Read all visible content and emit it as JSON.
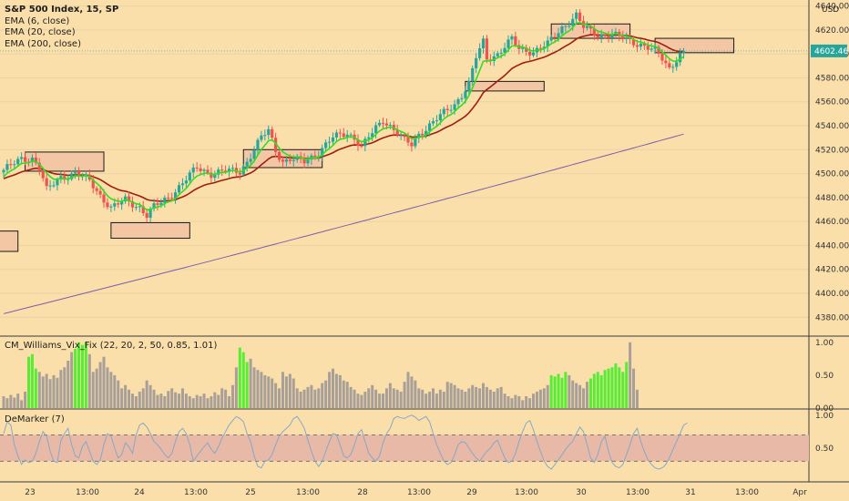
{
  "header": {
    "title": "S&P 500 Index, 15, SP",
    "currency": "USD",
    "indicators": [
      "EMA (6, close)",
      "EMA (20, close)",
      "EMA (200, close)"
    ]
  },
  "price_tag": "4602.46",
  "vix_label": "CM_Williams_Vix_Fix (22, 20, 2, 50, 0.85, 1.01)",
  "demarker_label": "DeMarker (7)",
  "colors": {
    "background": "#fbdfab",
    "bull": "#26a69a",
    "bear": "#ef5350",
    "ema6": "#33dd22",
    "ema20": "#a01e0c",
    "ema200": "#7b5ea7",
    "zone_fill": "#f4c7a4",
    "vix_high": "#55ee33",
    "vix_normal": "#a8a098",
    "demarker_line": "#86a8c8",
    "demarker_band": "#e8b9a6"
  },
  "chart_data": [
    {
      "type": "candlestick",
      "title": "S&P 500 Index, 15, SP",
      "y_unit": "USD",
      "ylim": [
        4365,
        4645
      ],
      "y_ticks": [
        4380,
        4400,
        4420,
        4440,
        4460,
        4480,
        4500,
        4520,
        4540,
        4560,
        4580,
        4600,
        4620,
        4640
      ],
      "x_ticks": [
        "23",
        "13:00",
        "24",
        "13:00",
        "25",
        "13:00",
        "28",
        "13:00",
        "29",
        "13:00",
        "30",
        "13:00",
        "31",
        "13:00",
        "Apr"
      ],
      "last_price": 4602.46,
      "close_waypoints": [
        [
          0,
          4503
        ],
        [
          5,
          4512
        ],
        [
          8,
          4513
        ],
        [
          10,
          4505
        ],
        [
          12,
          4486
        ],
        [
          16,
          4497
        ],
        [
          20,
          4500
        ],
        [
          24,
          4494
        ],
        [
          27,
          4482
        ],
        [
          30,
          4471
        ],
        [
          34,
          4478
        ],
        [
          38,
          4472
        ],
        [
          40,
          4465
        ],
        [
          42,
          4472
        ],
        [
          46,
          4480
        ],
        [
          50,
          4492
        ],
        [
          54,
          4505
        ],
        [
          58,
          4500
        ],
        [
          62,
          4502
        ],
        [
          66,
          4502
        ],
        [
          68,
          4510
        ],
        [
          70,
          4520
        ],
        [
          72,
          4530
        ],
        [
          74,
          4536
        ],
        [
          76,
          4520
        ],
        [
          78,
          4510
        ],
        [
          80,
          4512
        ],
        [
          84,
          4510
        ],
        [
          88,
          4518
        ],
        [
          92,
          4530
        ],
        [
          96,
          4534
        ],
        [
          98,
          4530
        ],
        [
          100,
          4522
        ],
        [
          104,
          4538
        ],
        [
          106,
          4545
        ],
        [
          108,
          4540
        ],
        [
          110,
          4534
        ],
        [
          112,
          4527
        ],
        [
          114,
          4524
        ],
        [
          116,
          4533
        ],
        [
          118,
          4538
        ],
        [
          122,
          4548
        ],
        [
          126,
          4558
        ],
        [
          128,
          4566
        ],
        [
          130,
          4575
        ],
        [
          132,
          4597
        ],
        [
          134,
          4610
        ],
        [
          135,
          4596
        ],
        [
          138,
          4600
        ],
        [
          142,
          4612
        ],
        [
          144,
          4604
        ],
        [
          148,
          4602
        ],
        [
          152,
          4608
        ],
        [
          156,
          4622
        ],
        [
          160,
          4632
        ],
        [
          162,
          4622
        ],
        [
          166,
          4616
        ],
        [
          170,
          4616
        ],
        [
          174,
          4612
        ],
        [
          178,
          4608
        ],
        [
          182,
          4602
        ],
        [
          184,
          4596
        ],
        [
          186,
          4588
        ],
        [
          188,
          4596
        ],
        [
          190,
          4602.46
        ]
      ],
      "series": [
        {
          "name": "EMA (6, close)",
          "period": 6
        },
        {
          "name": "EMA (20, close)",
          "period": 20
        },
        {
          "name": "EMA (200, close)",
          "period": 200,
          "values_at_start_end": [
            4383,
            4533
          ]
        }
      ],
      "zones": [
        {
          "x0": -6,
          "x1": 4,
          "y0": 4435,
          "y1": 4452
        },
        {
          "x0": 6,
          "x1": 28,
          "y0": 4502,
          "y1": 4518
        },
        {
          "x0": 30,
          "x1": 52,
          "y0": 4446,
          "y1": 4459
        },
        {
          "x0": 67,
          "x1": 89,
          "y0": 4505,
          "y1": 4520
        },
        {
          "x0": 129,
          "x1": 151,
          "y0": 4569,
          "y1": 4577
        },
        {
          "x0": 153,
          "x1": 175,
          "y0": 4613,
          "y1": 4625
        },
        {
          "x0": 182,
          "x1": 204,
          "y0": 4601,
          "y1": 4613
        }
      ]
    },
    {
      "type": "bar",
      "title": "CM_Williams_Vix_Fix (22, 20, 2, 50, 0.85, 1.01)",
      "ylim": [
        0,
        1.08
      ],
      "y_ticks": [
        "0.00",
        "0.50",
        "1.00"
      ],
      "high_threshold_note": "bars colored green when in high-volatility signal",
      "values": [
        0.18,
        0.15,
        0.2,
        0.16,
        0.22,
        0.12,
        0.25,
        0.78,
        0.82,
        0.6,
        0.55,
        0.48,
        0.52,
        0.44,
        0.5,
        0.46,
        0.58,
        0.62,
        0.72,
        0.85,
        0.9,
        1.0,
        0.96,
        1.0,
        0.82,
        0.55,
        0.6,
        0.7,
        0.78,
        0.62,
        0.55,
        0.5,
        0.42,
        0.3,
        0.35,
        0.28,
        0.22,
        0.18,
        0.25,
        0.3,
        0.42,
        0.35,
        0.28,
        0.2,
        0.22,
        0.18,
        0.26,
        0.3,
        0.24,
        0.22,
        0.3,
        0.22,
        0.18,
        0.15,
        0.2,
        0.18,
        0.22,
        0.15,
        0.18,
        0.24,
        0.2,
        0.3,
        0.28,
        0.18,
        0.35,
        0.62,
        0.92,
        0.85,
        0.7,
        0.75,
        0.62,
        0.58,
        0.55,
        0.5,
        0.48,
        0.45,
        0.38,
        0.3,
        0.55,
        0.48,
        0.52,
        0.45,
        0.3,
        0.25,
        0.28,
        0.32,
        0.35,
        0.28,
        0.3,
        0.38,
        0.42,
        0.55,
        0.6,
        0.52,
        0.5,
        0.42,
        0.4,
        0.32,
        0.28,
        0.22,
        0.2,
        0.25,
        0.3,
        0.35,
        0.28,
        0.22,
        0.22,
        0.3,
        0.38,
        0.3,
        0.28,
        0.25,
        0.4,
        0.55,
        0.48,
        0.42,
        0.3,
        0.28,
        0.22,
        0.25,
        0.3,
        0.22,
        0.28,
        0.25,
        0.4,
        0.38,
        0.35,
        0.3,
        0.28,
        0.25,
        0.3,
        0.35,
        0.32,
        0.3,
        0.38,
        0.32,
        0.28,
        0.25,
        0.3,
        0.32,
        0.22,
        0.18,
        0.15,
        0.2,
        0.18,
        0.12,
        0.18,
        0.15,
        0.22,
        0.25,
        0.28,
        0.3,
        0.35,
        0.5,
        0.48,
        0.52,
        0.46,
        0.55,
        0.5,
        0.42,
        0.38,
        0.35,
        0.3,
        0.4,
        0.45,
        0.52,
        0.55,
        0.5,
        0.58,
        0.6,
        0.62,
        0.68,
        0.62,
        0.55,
        0.7,
        1.0,
        0.6,
        0.28
      ],
      "high_flags": [
        0,
        0,
        0,
        0,
        0,
        0,
        0,
        1,
        1,
        1,
        0,
        0,
        0,
        0,
        0,
        0,
        0,
        0,
        0,
        0,
        1,
        1,
        1,
        1,
        0,
        0,
        0,
        0,
        0,
        0,
        0,
        0,
        0,
        0,
        0,
        0,
        0,
        0,
        0,
        0,
        0,
        0,
        0,
        0,
        0,
        0,
        0,
        0,
        0,
        0,
        0,
        0,
        0,
        0,
        0,
        0,
        0,
        0,
        0,
        0,
        0,
        0,
        0,
        0,
        0,
        0,
        1,
        1,
        1,
        0,
        0,
        0,
        0,
        0,
        0,
        0,
        0,
        0,
        0,
        0,
        0,
        0,
        0,
        0,
        0,
        0,
        0,
        0,
        0,
        0,
        0,
        0,
        0,
        0,
        0,
        0,
        0,
        0,
        0,
        0,
        0,
        0,
        0,
        0,
        0,
        0,
        0,
        0,
        0,
        0,
        0,
        0,
        0,
        0,
        0,
        0,
        0,
        0,
        0,
        0,
        0,
        0,
        0,
        0,
        0,
        0,
        0,
        0,
        0,
        0,
        0,
        0,
        0,
        0,
        0,
        0,
        0,
        0,
        0,
        0,
        0,
        0,
        0,
        0,
        0,
        0,
        0,
        0,
        0,
        0,
        0,
        0,
        0,
        1,
        1,
        1,
        1,
        1,
        0,
        0,
        0,
        0,
        0,
        0,
        1,
        1,
        1,
        1,
        1,
        1,
        1,
        1,
        1,
        1,
        1,
        0
      ]
    },
    {
      "type": "line",
      "title": "DeMarker (7)",
      "ylim": [
        0,
        1.08
      ],
      "y_ticks": [
        "0.50",
        "1.00"
      ],
      "band": [
        0.3,
        0.7
      ],
      "values": [
        0.72,
        0.9,
        0.85,
        0.55,
        0.38,
        0.25,
        0.32,
        0.28,
        0.3,
        0.42,
        0.6,
        0.75,
        0.68,
        0.45,
        0.3,
        0.28,
        0.62,
        0.72,
        0.8,
        0.55,
        0.38,
        0.35,
        0.52,
        0.6,
        0.45,
        0.3,
        0.25,
        0.32,
        0.55,
        0.72,
        0.68,
        0.5,
        0.35,
        0.4,
        0.58,
        0.52,
        0.42,
        0.7,
        0.85,
        0.88,
        0.82,
        0.72,
        0.6,
        0.55,
        0.48,
        0.4,
        0.35,
        0.42,
        0.6,
        0.75,
        0.8,
        0.72,
        0.55,
        0.3,
        0.38,
        0.45,
        0.52,
        0.58,
        0.48,
        0.42,
        0.52,
        0.65,
        0.75,
        0.85,
        0.92,
        0.98,
        0.95,
        0.9,
        0.72,
        0.6,
        0.38,
        0.22,
        0.2,
        0.3,
        0.32,
        0.4,
        0.55,
        0.68,
        0.75,
        0.8,
        0.85,
        0.95,
        0.98,
        0.9,
        0.8,
        0.62,
        0.45,
        0.3,
        0.22,
        0.3,
        0.45,
        0.6,
        0.72,
        0.7,
        0.55,
        0.38,
        0.35,
        0.4,
        0.55,
        0.72,
        0.78,
        0.6,
        0.42,
        0.35,
        0.3,
        0.38,
        0.58,
        0.72,
        0.8,
        0.95,
        0.98,
        0.96,
        0.95,
        0.98,
        1.0,
        0.97,
        0.92,
        0.95,
        0.98,
        0.9,
        0.72,
        0.55,
        0.42,
        0.3,
        0.25,
        0.28,
        0.4,
        0.55,
        0.6,
        0.58,
        0.5,
        0.42,
        0.35,
        0.3,
        0.38,
        0.45,
        0.5,
        0.58,
        0.62,
        0.48,
        0.35,
        0.28,
        0.3,
        0.42,
        0.6,
        0.75,
        0.88,
        0.92,
        0.78,
        0.6,
        0.45,
        0.3,
        0.22,
        0.18,
        0.25,
        0.32,
        0.4,
        0.48,
        0.55,
        0.6,
        0.72,
        0.82,
        0.75,
        0.55,
        0.35,
        0.28,
        0.4,
        0.6,
        0.68,
        0.45,
        0.28,
        0.22,
        0.2,
        0.25,
        0.4,
        0.55,
        0.72,
        0.8,
        0.6,
        0.45,
        0.32,
        0.25,
        0.2,
        0.18,
        0.2,
        0.25,
        0.35,
        0.48,
        0.6,
        0.72,
        0.85,
        0.88
      ]
    }
  ]
}
